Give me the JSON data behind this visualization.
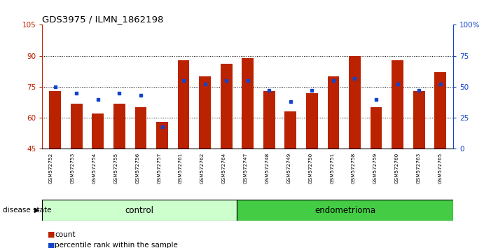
{
  "title": "GDS3975 / ILMN_1862198",
  "samples": [
    "GSM572752",
    "GSM572753",
    "GSM572754",
    "GSM572755",
    "GSM572756",
    "GSM572757",
    "GSM572761",
    "GSM572762",
    "GSM572764",
    "GSM572747",
    "GSM572748",
    "GSM572749",
    "GSM572750",
    "GSM572751",
    "GSM572758",
    "GSM572759",
    "GSM572760",
    "GSM572763",
    "GSM572765"
  ],
  "red_values": [
    73,
    67,
    62,
    67,
    65,
    58,
    88,
    80,
    86,
    89,
    73,
    63,
    72,
    80,
    90,
    65,
    88,
    73,
    82
  ],
  "blue_values": [
    50,
    45,
    40,
    45,
    43,
    18,
    55,
    52,
    55,
    55,
    47,
    38,
    47,
    55,
    57,
    40,
    52,
    47,
    52
  ],
  "control_count": 9,
  "endometrioma_count": 10,
  "ylim_left": [
    45,
    105
  ],
  "ylim_right": [
    0,
    100
  ],
  "yticks_left": [
    45,
    60,
    75,
    90,
    105
  ],
  "yticks_right": [
    0,
    25,
    50,
    75,
    100
  ],
  "bar_color": "#bb2200",
  "blue_color": "#1144cc",
  "control_label": "control",
  "endometrioma_label": "endometrioma",
  "disease_state_label": "disease state",
  "legend_count": "count",
  "legend_percentile": "percentile rank within the sample",
  "control_bg": "#ccffcc",
  "endometrioma_bg": "#44cc44",
  "tick_bg": "#cccccc",
  "bar_width": 0.55
}
